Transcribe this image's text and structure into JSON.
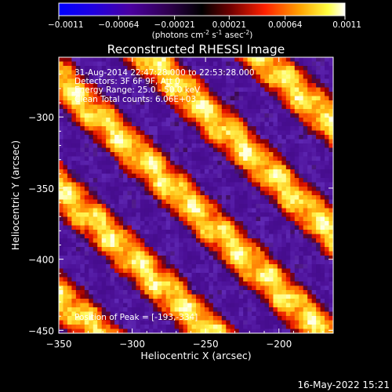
{
  "chart_data": {
    "type": "heatmap",
    "title": "Reconstructed RHESSI Image",
    "xlabel": "Heliocentric X (arcsec)",
    "ylabel": "Heliocentric Y (arcsec)",
    "xlim": [
      -350,
      -163
    ],
    "ylim": [
      -452,
      -258
    ],
    "x_ticks": [
      -350,
      -300,
      -250,
      -200
    ],
    "y_ticks": [
      -300,
      -350,
      -400,
      -450
    ],
    "colorbar": {
      "range": [
        -0.0011,
        0.0011
      ],
      "ticks": [
        "-0.0011",
        "-0.00064",
        "-0.00021",
        "0.00021",
        "0.00064",
        "0.0011"
      ],
      "unit_base": "(photons cm",
      "unit_sup1": "-2",
      "unit_mid": " s",
      "unit_sup2": "-1",
      "unit_mid2": " asec",
      "unit_sup3": "-2",
      "unit_end": ")"
    },
    "annotations": [
      "31-Aug-2014 22:47:28.000 to 22:53:28.000",
      "Detectors: 3F 6F 9F, Att 0",
      "Energy Range: 25.0 - 50.0 keV",
      "Clean     Total counts: 6.06E+03"
    ],
    "peak_label": "Position of Peak = [-193,-334]",
    "peak": [
      -193,
      -334
    ],
    "grid": false,
    "colormap": [
      "#0000ff",
      "#3a00b0",
      "#4b1380",
      "#8b0000",
      "#ff0000",
      "#ff8000",
      "#ffff00",
      "#ffffff"
    ]
  },
  "footer": {
    "date": "16-May-2022 15:21"
  }
}
